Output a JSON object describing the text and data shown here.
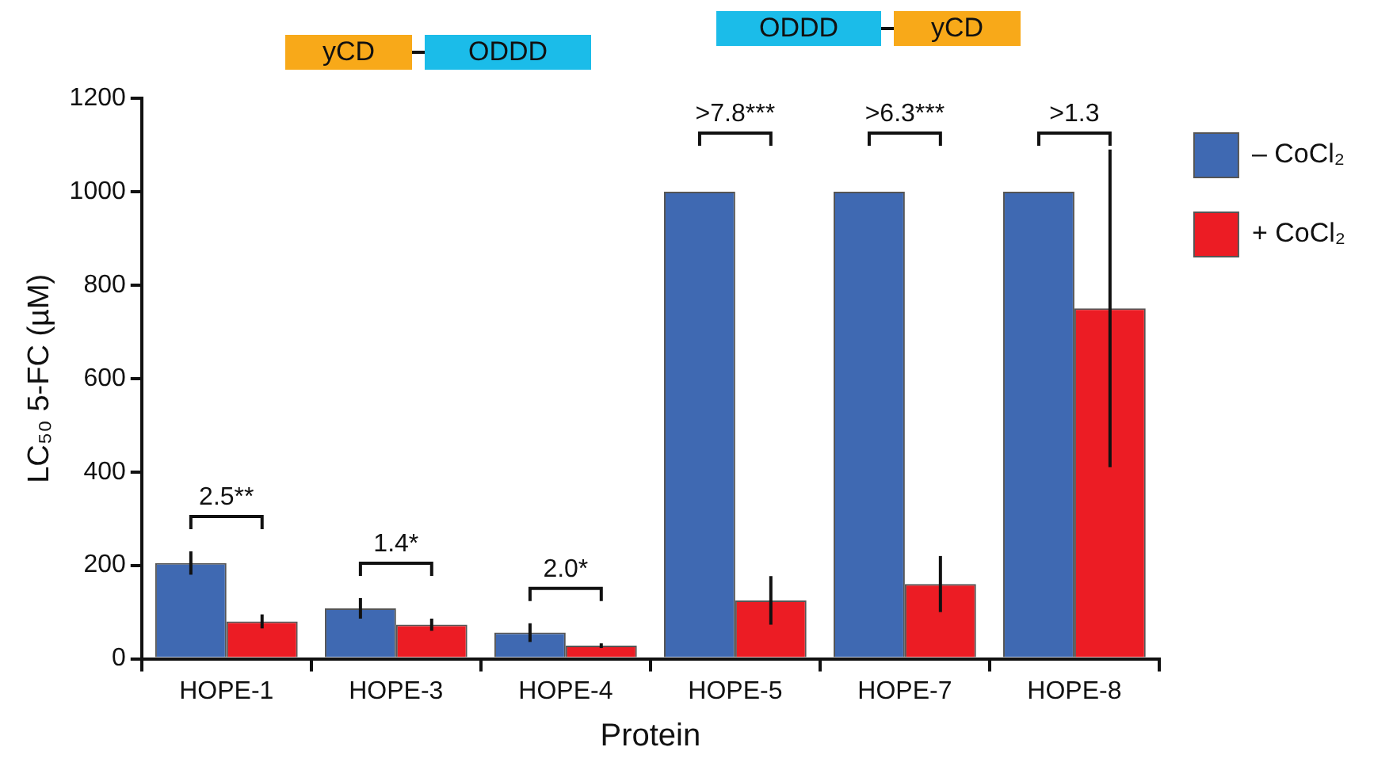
{
  "chart_data": {
    "type": "bar",
    "xlabel": "Protein",
    "ylabel": "LC₅₀ 5-FC (µM)",
    "categories": [
      "HOPE-1",
      "HOPE-3",
      "HOPE-4",
      "HOPE-5",
      "HOPE-7",
      "HOPE-8"
    ],
    "series": [
      {
        "name": "– CoCl₂",
        "color": "#3f69b2",
        "values": [
          205,
          108,
          56,
          1000,
          1000,
          1000
        ],
        "errors": [
          25,
          22,
          20,
          null,
          null,
          null
        ]
      },
      {
        "name": "+ CoCl₂",
        "color": "#ec1c24",
        "values": [
          80,
          73,
          28,
          125,
          160,
          750
        ],
        "errors": [
          15,
          13,
          5,
          52,
          60,
          340
        ]
      }
    ],
    "ylim": [
      0,
      1200
    ],
    "yticks": [
      0,
      200,
      400,
      600,
      800,
      1000,
      1200
    ],
    "grid": false,
    "legend": "right",
    "annotations": [
      "yCD",
      "ODDD",
      "ODDD",
      "yCD",
      "2.5**",
      "1.4*",
      "2.0*",
      ">7.8***",
      ">6.3***",
      ">1.3"
    ]
  }
}
